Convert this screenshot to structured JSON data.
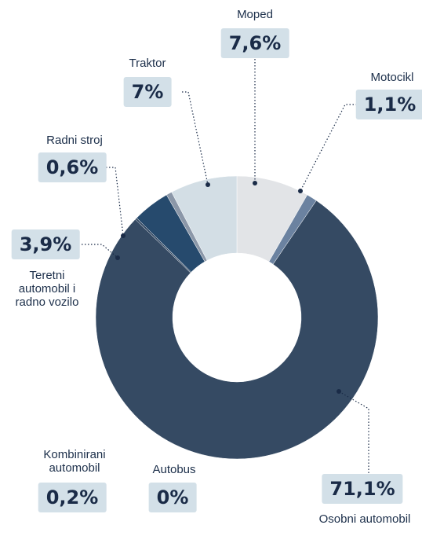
{
  "chart_data": {
    "type": "donut",
    "categories": [
      "Moped",
      "Motocikl",
      "Osobni automobil",
      "Kombinirani automobil",
      "Autobus",
      "Teretni automobil i radno vozilo",
      "Radni stroj",
      "Traktor"
    ],
    "values": [
      7.6,
      1.1,
      71.1,
      0.2,
      0,
      3.9,
      0.6,
      7
    ],
    "value_labels": [
      "7,6%",
      "1,1%",
      "71,1%",
      "0,2%",
      "0%",
      "3,9%",
      "0,6%",
      "7%"
    ],
    "colors": [
      "#e2e4e7",
      "#6b82a0",
      "#354a63",
      "#2f4560",
      "#2f4560",
      "#264a6d",
      "#8b97a8",
      "#d3dee5"
    ]
  }
}
